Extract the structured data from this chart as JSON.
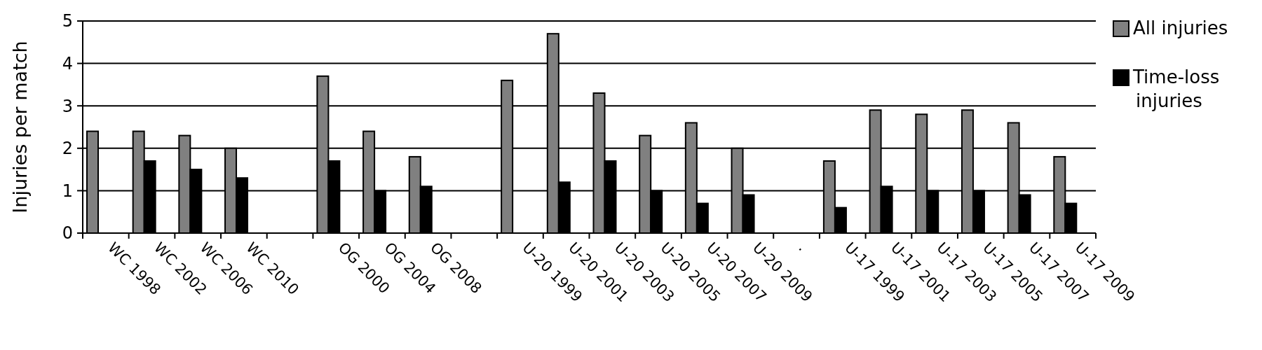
{
  "chart_data": {
    "type": "bar",
    "ylabel": "Injuries per match",
    "categories": [
      "WC 1998",
      "WC 2002",
      "WC 2006",
      "WC 2010",
      null,
      "OG 2000",
      "OG 2004",
      "OG 2008",
      null,
      "U-20 1999",
      "U-20 2001",
      "U-20 2003",
      "U-20 2005",
      "U-20 2007",
      "U-20 2009",
      ".",
      "U-17 1999",
      "U-17 2001",
      "U-17 2003",
      "U-17 2005",
      "U-17 2007",
      "U-17 2009"
    ],
    "series": [
      {
        "name": "All injuries",
        "color": "#808080",
        "values": [
          2.4,
          2.4,
          2.3,
          2.0,
          null,
          3.7,
          2.4,
          1.8,
          null,
          3.6,
          4.7,
          3.3,
          2.3,
          2.6,
          2.0,
          null,
          1.7,
          2.9,
          2.8,
          2.9,
          2.6,
          1.8
        ]
      },
      {
        "name": "Time-loss injuries",
        "color": "#000000",
        "values": [
          null,
          1.7,
          1.5,
          1.3,
          null,
          1.7,
          1.0,
          1.1,
          null,
          null,
          1.2,
          1.7,
          1.0,
          0.7,
          0.9,
          null,
          0.6,
          1.1,
          1.0,
          1.0,
          0.9,
          0.7
        ]
      }
    ],
    "ylim": [
      0,
      5
    ],
    "yticks": [
      0,
      1,
      2,
      3,
      4,
      5
    ],
    "grid": "y",
    "legend": "right"
  }
}
